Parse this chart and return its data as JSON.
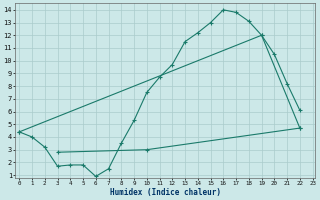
{
  "xlabel": "Humidex (Indice chaleur)",
  "background_color": "#cce8e8",
  "grid_color": "#aacccc",
  "line_color": "#1a7a6a",
  "line1_x": [
    0,
    1,
    2,
    3,
    4,
    5,
    6,
    7,
    8,
    9,
    10,
    11,
    12,
    13,
    14,
    15,
    16,
    17,
    18,
    19,
    20,
    21,
    22
  ],
  "line1_y": [
    4.4,
    4.0,
    3.2,
    1.7,
    1.8,
    1.8,
    0.9,
    1.5,
    3.5,
    5.3,
    7.5,
    8.7,
    9.7,
    11.5,
    12.2,
    13.0,
    14.0,
    13.8,
    13.1,
    12.0,
    10.5,
    8.2,
    6.1
  ],
  "line2_x": [
    0,
    19,
    22
  ],
  "line2_y": [
    4.4,
    12.0,
    4.7
  ],
  "line3_x": [
    3,
    10,
    22
  ],
  "line3_y": [
    2.8,
    3.0,
    4.7
  ],
  "xlim": [
    -0.3,
    23.2
  ],
  "ylim": [
    0.8,
    14.5
  ],
  "xticks": [
    0,
    1,
    2,
    3,
    4,
    5,
    6,
    7,
    8,
    9,
    10,
    11,
    12,
    13,
    14,
    15,
    16,
    17,
    18,
    19,
    20,
    21,
    22,
    23
  ],
  "yticks": [
    1,
    2,
    3,
    4,
    5,
    6,
    7,
    8,
    9,
    10,
    11,
    12,
    13,
    14
  ]
}
